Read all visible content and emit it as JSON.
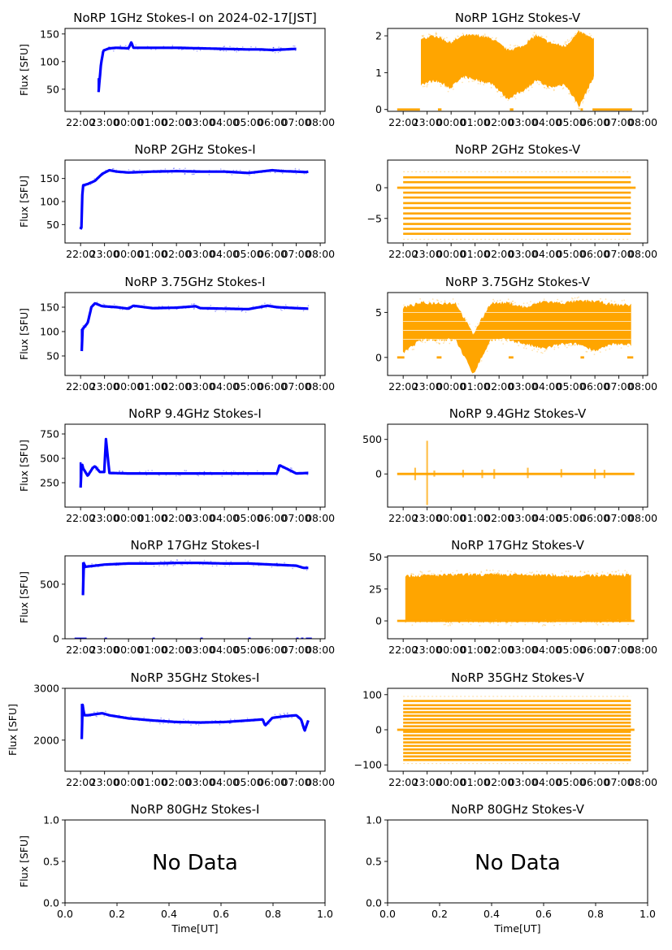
{
  "figure": {
    "colors": {
      "stokes_i": "#0000ff",
      "stokes_v": "#ffa500",
      "axis": "#000000",
      "background": "#ffffff"
    },
    "time_ticks": [
      "22:00",
      "23:00",
      "00:00",
      "01:00",
      "02:00",
      "03:00",
      "04:00",
      "05:00",
      "06:00",
      "07:00",
      "08:00"
    ],
    "no_data_text": "No Data",
    "ylabel": "Flux [SFU]",
    "xlabel": "Time[UT]"
  },
  "chart_data": [
    {
      "type": "scatter",
      "id": "1ghz-i",
      "title": "NoRP 1GHz Stokes-I on 2024-02-17[JST]",
      "ylabel": "Flux [SFU]",
      "ylim": [
        10,
        160
      ],
      "yticks": [
        50,
        100,
        150
      ],
      "xlim_hours": [
        -0.65,
        10.2
      ],
      "color": "stokes_i",
      "series": [
        {
          "name": "Stokes-I",
          "x": [
            0.75,
            0.8,
            0.85,
            0.95,
            1.2,
            1.5,
            2.0,
            2.12,
            2.2,
            3,
            4,
            5,
            6,
            7,
            7.5,
            8,
            8.5,
            8.95,
            9.0
          ],
          "y": [
            45,
            70,
            95,
            120,
            124,
            125,
            124,
            135,
            125,
            125,
            125,
            124,
            123,
            122,
            122,
            121,
            122,
            123,
            123
          ]
        }
      ]
    },
    {
      "type": "scatter",
      "id": "1ghz-v",
      "title": "NoRP 1GHz Stokes-V",
      "ylabel": "",
      "ylim": [
        -0.05,
        2.2
      ],
      "yticks": [
        0,
        1,
        2
      ],
      "xlim_hours": [
        -0.65,
        10.2
      ],
      "color": "stokes_v",
      "band": {
        "x_start": 0.75,
        "x_end": 7.95,
        "low": [
          0.7,
          0.8,
          0.6,
          0.9,
          0.8,
          0.7,
          0.3,
          0.5,
          0.8,
          0.6,
          0.7,
          0.1,
          0.9
        ],
        "high": [
          1.9,
          2.0,
          1.8,
          2.0,
          2.0,
          1.9,
          1.6,
          1.7,
          2.0,
          1.8,
          1.7,
          2.1,
          1.9
        ]
      },
      "zero_segments": [
        [
          -0.25,
          0.7
        ],
        [
          1.45,
          1.6
        ],
        [
          4.45,
          4.6
        ],
        [
          7.4,
          7.5
        ],
        [
          7.9,
          9.55
        ]
      ]
    },
    {
      "type": "scatter",
      "id": "2ghz-i",
      "title": "NoRP 2GHz Stokes-I",
      "ylabel": "Flux [SFU]",
      "ylim": [
        10,
        190
      ],
      "yticks": [
        50,
        100,
        150
      ],
      "xlim_hours": [
        -0.65,
        10.2
      ],
      "color": "stokes_i",
      "series": [
        {
          "name": "Stokes-I",
          "x": [
            0.0,
            0.05,
            0.08,
            0.3,
            0.6,
            0.9,
            1.2,
            1.5,
            2,
            3,
            4,
            5,
            6,
            7,
            8,
            8.4,
            9,
            9.4,
            9.5
          ],
          "y": [
            40,
            45,
            135,
            138,
            145,
            160,
            168,
            165,
            163,
            165,
            166,
            165,
            165,
            162,
            168,
            166,
            165,
            164,
            165
          ]
        }
      ]
    },
    {
      "type": "scatter",
      "id": "2ghz-v",
      "title": "NoRP 2GHz Stokes-V",
      "ylabel": "",
      "ylim": [
        -9,
        4.5
      ],
      "yticks": [
        -5,
        0
      ],
      "xlim_hours": [
        -0.65,
        10.2
      ],
      "color": "stokes_v",
      "levels": [
        2.6,
        1.7,
        0.9,
        0,
        -0.8,
        -1.6,
        -2.5,
        -3.3,
        -4.2,
        -5.0,
        -5.9,
        -6.7,
        -7.5,
        -8.4
      ],
      "x_range": [
        0.0,
        9.5
      ],
      "zero_segments": [
        [
          -0.25,
          9.7
        ]
      ]
    },
    {
      "type": "scatter",
      "id": "3.75ghz-i",
      "title": "NoRP 3.75GHz Stokes-I",
      "ylabel": "Flux [SFU]",
      "ylim": [
        10,
        180
      ],
      "yticks": [
        50,
        100,
        150
      ],
      "xlim_hours": [
        -0.65,
        10.2
      ],
      "color": "stokes_i",
      "series": [
        {
          "name": "Stokes-I",
          "x": [
            0.05,
            0.08,
            0.2,
            0.3,
            0.45,
            0.6,
            0.9,
            1.5,
            2.0,
            2.2,
            3,
            4,
            4.8,
            5,
            6,
            7,
            7.8,
            8.2,
            9,
            9.5
          ],
          "y": [
            60,
            105,
            112,
            118,
            150,
            158,
            152,
            150,
            147,
            153,
            148,
            149,
            152,
            148,
            147,
            146,
            153,
            150,
            148,
            147
          ]
        }
      ]
    },
    {
      "type": "scatter",
      "id": "3.75ghz-v",
      "title": "NoRP 3.75GHz Stokes-V",
      "ylabel": "",
      "ylim": [
        -2,
        7.2
      ],
      "yticks": [
        0,
        5
      ],
      "xlim_hours": [
        -0.65,
        10.2
      ],
      "color": "stokes_v",
      "band": {
        "x_start": 0.0,
        "x_end": 9.5,
        "low": [
          0.5,
          2.0,
          2.0,
          2.0,
          -1.8,
          2.0,
          2.0,
          1.5,
          1.0,
          1.5,
          1.5,
          0.8,
          1.5,
          1.5
        ],
        "high": [
          5.5,
          6.0,
          6.0,
          6.0,
          2.5,
          6.0,
          6.0,
          5.5,
          6.2,
          6.0,
          6.2,
          6.2,
          5.8,
          5.8
        ]
      },
      "zero_segments": [
        [
          -0.25,
          0.05
        ],
        [
          1.4,
          1.6
        ],
        [
          4.4,
          4.6
        ],
        [
          7.4,
          7.55
        ],
        [
          9.35,
          9.6
        ]
      ]
    },
    {
      "type": "scatter",
      "id": "9.4ghz-i",
      "title": "NoRP 9.4GHz Stokes-I",
      "ylabel": "Flux [SFU]",
      "ylim": [
        0,
        850
      ],
      "yticks": [
        250,
        500,
        750
      ],
      "xlim_hours": [
        -0.65,
        10.2
      ],
      "color": "stokes_i",
      "series": [
        {
          "name": "Stokes-I",
          "x": [
            0.0,
            0.05,
            0.1,
            0.3,
            0.5,
            0.6,
            0.8,
            1.0,
            1.05,
            1.2,
            2,
            3,
            4,
            5,
            6,
            7,
            8.2,
            8.3,
            9,
            9.5
          ],
          "y": [
            200,
            460,
            400,
            320,
            400,
            420,
            360,
            360,
            720,
            350,
            345,
            345,
            345,
            345,
            345,
            345,
            345,
            430,
            345,
            350
          ]
        }
      ]
    },
    {
      "type": "scatter",
      "id": "9.4ghz-v",
      "title": "NoRP 9.4GHz Stokes-V",
      "ylabel": "",
      "ylim": [
        -480,
        720
      ],
      "yticks": [
        0,
        500
      ],
      "xlim_hours": [
        -0.65,
        10.2
      ],
      "color": "stokes_v",
      "spikes": [
        [
          0.5,
          90,
          -90
        ],
        [
          1.0,
          480,
          -450
        ],
        [
          1.3,
          50,
          -40
        ],
        [
          2.5,
          60,
          -50
        ],
        [
          3.3,
          60,
          -60
        ],
        [
          3.8,
          70,
          -70
        ],
        [
          5.2,
          90,
          -60
        ],
        [
          6.6,
          70,
          -50
        ],
        [
          8.0,
          70,
          -70
        ],
        [
          8.4,
          60,
          -60
        ]
      ],
      "zero_segments": [
        [
          -0.25,
          9.65
        ]
      ]
    },
    {
      "type": "scatter",
      "id": "17ghz-i",
      "title": "NoRP 17GHz Stokes-I",
      "ylabel": "Flux [SFU]",
      "ylim": [
        0,
        760
      ],
      "yticks": [
        0,
        500
      ],
      "xlim_hours": [
        -0.65,
        10.2
      ],
      "color": "stokes_i",
      "series": [
        {
          "name": "Stokes-I",
          "x": [
            0.1,
            0.12,
            0.2,
            1,
            2,
            3,
            4,
            5,
            6,
            7,
            8,
            9,
            9.3,
            9.5
          ],
          "y": [
            400,
            700,
            660,
            680,
            690,
            690,
            695,
            695,
            690,
            690,
            680,
            670,
            650,
            650
          ]
        }
      ],
      "zero_segments": [
        [
          -0.25,
          0.25
        ],
        [
          1.0,
          1.1
        ],
        [
          3.0,
          3.1
        ],
        [
          5.0,
          5.1
        ],
        [
          7.0,
          7.1
        ],
        [
          9.0,
          9.1
        ],
        [
          9.2,
          9.3
        ],
        [
          9.4,
          9.65
        ]
      ]
    },
    {
      "type": "scatter",
      "id": "17ghz-v",
      "title": "NoRP 17GHz Stokes-V",
      "ylabel": "",
      "ylim": [
        -14,
        51
      ],
      "yticks": [
        0,
        25,
        50
      ],
      "xlim_hours": [
        -0.65,
        10.2
      ],
      "color": "stokes_v",
      "band": {
        "x_start": 0.1,
        "x_end": 9.5,
        "low": [
          0,
          0,
          0,
          0,
          0
        ],
        "high": [
          35,
          36,
          36,
          35,
          36
        ]
      },
      "zero_segments": [
        [
          -0.25,
          9.65
        ]
      ]
    },
    {
      "type": "scatter",
      "id": "35ghz-i",
      "title": "NoRP 35GHz Stokes-I",
      "ylabel": "Flux [SFU]",
      "ylim": [
        1400,
        3000
      ],
      "yticks": [
        2000,
        3000
      ],
      "xlim_hours": [
        -0.65,
        10.2
      ],
      "color": "stokes_i",
      "series": [
        {
          "name": "Stokes-I",
          "x": [
            0.05,
            0.08,
            0.15,
            0.3,
            0.6,
            0.9,
            1.2,
            2,
            3,
            4,
            5,
            6,
            7,
            7.6,
            7.7,
            8,
            8.5,
            9,
            9.2,
            9.35,
            9.5
          ],
          "y": [
            2020,
            2700,
            2480,
            2480,
            2500,
            2520,
            2480,
            2420,
            2380,
            2350,
            2340,
            2350,
            2380,
            2400,
            2280,
            2430,
            2460,
            2480,
            2400,
            2180,
            2380
          ]
        }
      ]
    },
    {
      "type": "scatter",
      "id": "35ghz-v",
      "title": "NoRP 35GHz Stokes-V",
      "ylabel": "",
      "ylim": [
        -118,
        118
      ],
      "yticks": [
        -100,
        0,
        100
      ],
      "xlim_hours": [
        -0.65,
        10.2
      ],
      "color": "stokes_v",
      "levels": [
        95,
        82,
        70,
        60,
        50,
        40,
        30,
        20,
        10,
        0,
        -6,
        -16,
        -26,
        -36,
        -46,
        -56,
        -66,
        -76,
        -86,
        -96
      ],
      "x_range": [
        0.0,
        9.5
      ],
      "zero_segments": [
        [
          -0.25,
          9.65
        ]
      ]
    },
    {
      "type": "scatter",
      "id": "80ghz-i",
      "title": "NoRP 80GHz Stokes-I",
      "ylabel": "Flux [SFU]",
      "xlabel": "Time[UT]",
      "ylim": [
        0,
        1
      ],
      "xlim": [
        0,
        1
      ],
      "yticks": [
        0.0,
        0.5,
        1.0
      ],
      "xticks": [
        0.0,
        0.2,
        0.4,
        0.6,
        0.8,
        1.0
      ],
      "no_data": true
    },
    {
      "type": "scatter",
      "id": "80ghz-v",
      "title": "NoRP 80GHz Stokes-V",
      "ylabel": "",
      "xlabel": "Time[UT]",
      "ylim": [
        0,
        1
      ],
      "xlim": [
        0,
        1
      ],
      "yticks": [
        0.0,
        0.5,
        1.0
      ],
      "xticks": [
        0.0,
        0.2,
        0.4,
        0.6,
        0.8,
        1.0
      ],
      "no_data": true
    }
  ]
}
